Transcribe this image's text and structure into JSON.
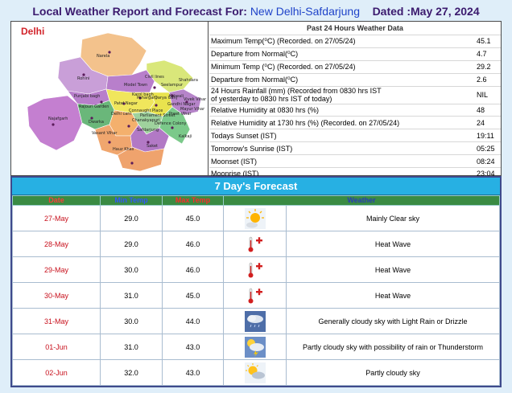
{
  "header": {
    "title_prefix": "Local Weather Report and Forecast For: ",
    "location": "New Delhi-Safdarjung",
    "date": "Dated :May 27, 2024"
  },
  "map": {
    "title": "Delhi",
    "places": [
      "Narela",
      "Rohini",
      "Civil lines",
      "Model Town",
      "Seelampur",
      "Shahdara",
      "Mayur Vihar",
      "Karol bagh",
      "Punjabi bagh",
      "Rajouri Garden",
      "Patel Nagar",
      "Paharganj",
      "Darya Ganj",
      "Kotwali",
      "Preet Vihar",
      "Gandhi Nagar",
      "Vivek Vihar",
      "Najafgarh",
      "Dwarka",
      "Delhi cant",
      "Vasant Vihar",
      "Hauz Khas",
      "Saket",
      "Safdarjung",
      "Defence Colony",
      "Kalkaji",
      "Chanakyapuri",
      "Connaught Place",
      "Parliament Street"
    ]
  },
  "past24": {
    "title": "Past 24 Hours Weather Data",
    "rows": [
      {
        "label": "Maximum Temp(⁰C) (Recorded. on 27/05/24)",
        "value": "45.1"
      },
      {
        "label": "Departure from Normal(⁰C)",
        "value": "4.7"
      },
      {
        "label": "Minimum Temp (⁰C) (Recorded. on 27/05/24)",
        "value": "29.2"
      },
      {
        "label": "Departure from Normal(⁰C)",
        "value": "2.6"
      },
      {
        "label": "24 Hours Rainfall (mm) (Recorded from 0830 hrs IST\nof yesterday to 0830 hrs IST of today)",
        "value": "NIL"
      },
      {
        "label": "Relative Humidity at 0830 hrs (%)",
        "value": "48"
      },
      {
        "label": "Relative Humidity at 1730 hrs (%) (Recorded. on 27/05/24)",
        "value": "24"
      },
      {
        "label": "Todays Sunset (IST)",
        "value": "19:11"
      },
      {
        "label": "Tomorrow's Sunrise (IST)",
        "value": "05:25"
      },
      {
        "label": "Moonset (IST)",
        "value": "08:24"
      },
      {
        "label": "Moonrise (IST)",
        "value": "23:04"
      }
    ]
  },
  "forecast": {
    "title": "7 Day's Forecast",
    "headers": {
      "date": "Date",
      "min": "Min Temp",
      "max": "Max Temp",
      "weather": "Weather"
    },
    "rows": [
      {
        "date": "27-May",
        "min": "29.0",
        "max": "45.0",
        "icon": "sun-cloud-icon",
        "weather": "Mainly Clear sky"
      },
      {
        "date": "28-May",
        "min": "29.0",
        "max": "46.0",
        "icon": "thermometer-hot-icon",
        "weather": "Heat Wave"
      },
      {
        "date": "29-May",
        "min": "30.0",
        "max": "46.0",
        "icon": "thermometer-hot-icon",
        "weather": "Heat Wave"
      },
      {
        "date": "30-May",
        "min": "31.0",
        "max": "45.0",
        "icon": "thermometer-hot-icon",
        "weather": "Heat Wave"
      },
      {
        "date": "31-May",
        "min": "30.0",
        "max": "44.0",
        "icon": "cloud-drizzle-icon",
        "weather": "Generally cloudy sky with Light Rain or Drizzle"
      },
      {
        "date": "01-Jun",
        "min": "31.0",
        "max": "43.0",
        "icon": "thunderstorm-icon",
        "weather": "Partly cloudy sky with possibility of rain or Thunderstorm"
      },
      {
        "date": "02-Jun",
        "min": "32.0",
        "max": "43.0",
        "icon": "partly-cloudy-icon",
        "weather": "Partly cloudy sky"
      }
    ]
  }
}
